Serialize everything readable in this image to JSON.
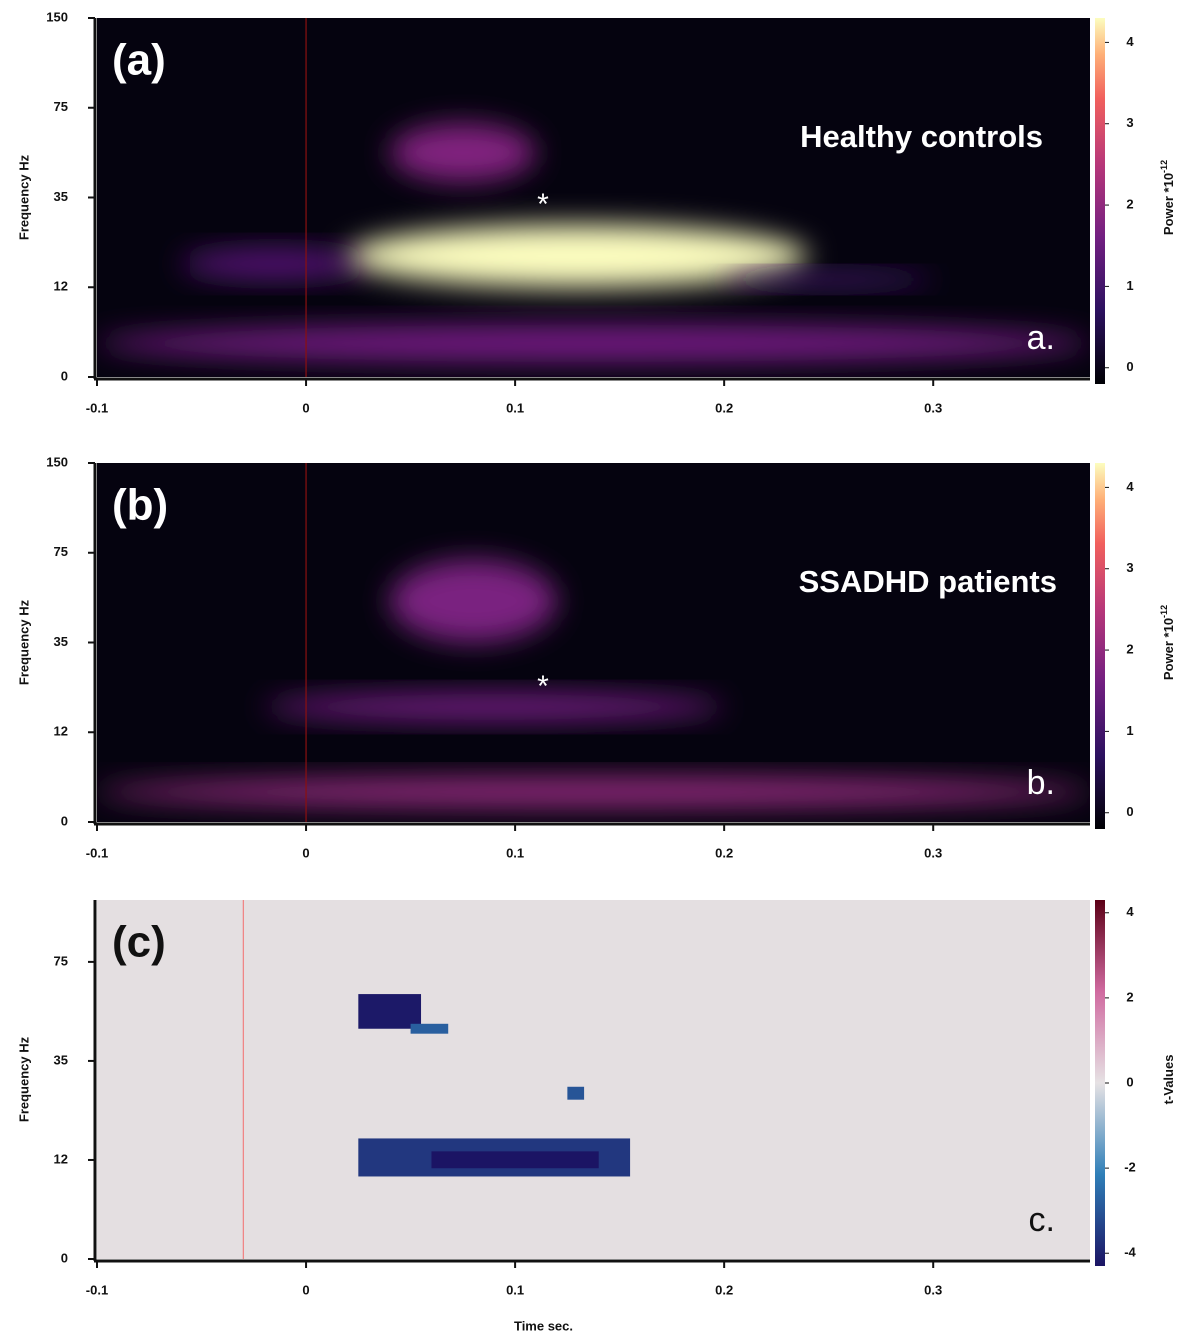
{
  "chart_data": [
    {
      "type": "heatmap",
      "panel_label": "(a)",
      "group_label": "Healthy controls",
      "corner_label": "a.",
      "marker": "*",
      "ylabel": "Frequency Hz",
      "xlim": [
        -0.1,
        0.375
      ],
      "xticks": [
        -0.1,
        0,
        0.1,
        0.2,
        0.3
      ],
      "ylim": [
        0,
        150
      ],
      "yticks": [
        0,
        12,
        35,
        75,
        150
      ],
      "vline": 0,
      "colormap": "magma",
      "background": "#05030f",
      "smooth": true,
      "clim": [
        -0.2,
        4.3
      ],
      "cticks": [
        0,
        1,
        2,
        3,
        4
      ],
      "colorbar_label": "Power *10",
      "colorbar_label_sup": "-12",
      "regions": [
        {
          "xlim": [
            -0.1,
            0.375
          ],
          "ylim": [
            2,
            7
          ],
          "value": 1.6
        },
        {
          "xlim": [
            -0.06,
            0.03
          ],
          "ylim": [
            14,
            22
          ],
          "value": 1.2
        },
        {
          "xlim": [
            0.04,
            0.11
          ],
          "ylim": [
            42,
            68
          ],
          "value": 1.8
        },
        {
          "xlim": [
            0.02,
            0.24
          ],
          "ylim": [
            12,
            28
          ],
          "value": 4.3
        },
        {
          "xlim": [
            0.2,
            0.3
          ],
          "ylim": [
            12,
            16
          ],
          "value": 1.0
        }
      ]
    },
    {
      "type": "heatmap",
      "panel_label": "(b)",
      "group_label": "SSADHD patients",
      "corner_label": "b.",
      "marker": "*",
      "ylabel": "Frequency Hz",
      "xlim": [
        -0.1,
        0.375
      ],
      "xticks": [
        -0.1,
        0,
        0.1,
        0.2,
        0.3
      ],
      "ylim": [
        0,
        150
      ],
      "yticks": [
        0,
        12,
        35,
        75,
        150
      ],
      "vline": 0,
      "colormap": "magma",
      "background": "#05030f",
      "smooth": true,
      "clim": [
        -0.2,
        4.3
      ],
      "cticks": [
        0,
        1,
        2,
        3,
        4
      ],
      "colorbar_label": "Power *10",
      "colorbar_label_sup": "-12",
      "regions": [
        {
          "xlim": [
            -0.1,
            0.375
          ],
          "ylim": [
            2,
            6
          ],
          "value": 2.0
        },
        {
          "xlim": [
            -0.02,
            0.2
          ],
          "ylim": [
            15,
            22
          ],
          "value": 1.6
        },
        {
          "xlim": [
            0.04,
            0.12
          ],
          "ylim": [
            35,
            72
          ],
          "value": 1.7
        }
      ]
    },
    {
      "type": "heatmap",
      "panel_label": "(c)",
      "corner_label": "c.",
      "xlabel": "Time sec.",
      "ylabel": "Frequency Hz",
      "xlim": [
        -0.1,
        0.375
      ],
      "xticks": [
        -0.1,
        0,
        0.1,
        0.2,
        0.3
      ],
      "ylim": [
        0,
        100
      ],
      "yticks": [
        0,
        12,
        35,
        75
      ],
      "vline": -0.03,
      "colormap": "diverging",
      "background": "#e4dfe1",
      "smooth": false,
      "clim": [
        -4.3,
        4.3
      ],
      "cticks": [
        -4,
        -2,
        0,
        2,
        4
      ],
      "colorbar_label": "t-Values",
      "regions": [
        {
          "xlim": [
            0.025,
            0.055
          ],
          "ylim": [
            48,
            62
          ],
          "value": -4.2
        },
        {
          "xlim": [
            0.05,
            0.068
          ],
          "ylim": [
            46,
            50
          ],
          "value": -2.8
        },
        {
          "xlim": [
            0.125,
            0.133
          ],
          "ylim": [
            26,
            29
          ],
          "value": -3.0
        },
        {
          "xlim": [
            0.025,
            0.155
          ],
          "ylim": [
            10,
            17
          ],
          "value": -3.6
        },
        {
          "xlim": [
            0.06,
            0.14
          ],
          "ylim": [
            11,
            14
          ],
          "value": -4.4
        }
      ]
    }
  ]
}
